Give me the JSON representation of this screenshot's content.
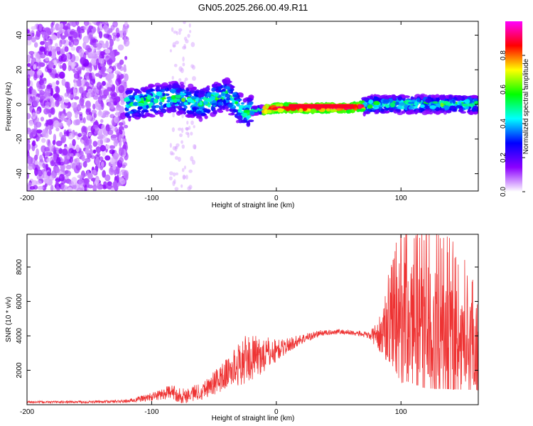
{
  "chart_data": [
    {
      "type": "heatmap",
      "title": "GN05.2025.266.00.49.R11",
      "xlabel": "Height of straight line (km)",
      "ylabel": "Frequency (Hz)",
      "xlim": [
        -200,
        162
      ],
      "ylim": [
        -50,
        48
      ],
      "xticks": [
        -200,
        -100,
        0,
        100
      ],
      "xtick_labels": [
        "-200",
        "-100",
        "0",
        "100"
      ],
      "yticks": [
        -40,
        -20,
        0,
        20,
        40
      ],
      "ytick_labels": [
        "-40",
        "-20",
        "0",
        "20",
        "40"
      ],
      "colorbar": {
        "label": "Normalized spectral amplitude",
        "range": [
          0,
          1
        ],
        "ticks": [
          0,
          0.2,
          0.4,
          0.6,
          0.8
        ],
        "tick_labels": [
          "0.0",
          "0.2",
          "0.4",
          "0.6",
          "0.8"
        ],
        "colors": [
          "#ffffff",
          "#8c00ff",
          "#0000ff",
          "#00ffff",
          "#00ff00",
          "#ffff00",
          "#ff0000",
          "#ff00ff"
        ]
      },
      "description_data": {
        "scatter_region_km": [
          -200,
          -120
        ],
        "band_center_hz": [
          [
            -120,
            0
          ],
          [
            -100,
            2
          ],
          [
            -80,
            4
          ],
          [
            -60,
            0
          ],
          [
            -40,
            6
          ],
          [
            -25,
            -6
          ],
          [
            -20,
            -4
          ],
          [
            0,
            -2
          ],
          [
            40,
            -2
          ],
          [
            60,
            -2
          ],
          [
            80,
            0
          ],
          [
            100,
            0
          ],
          [
            130,
            0
          ],
          [
            160,
            0
          ]
        ],
        "strong_region_km": [
          -10,
          70
        ]
      }
    },
    {
      "type": "line",
      "title": "",
      "xlabel": "Height of straight line (km)",
      "ylabel": "SNR (10 * v/v)",
      "xlim": [
        -200,
        162
      ],
      "ylim": [
        0,
        9900
      ],
      "xticks": [
        -200,
        -100,
        0,
        100
      ],
      "xtick_labels": [
        "-200",
        "-100",
        "0",
        "100"
      ],
      "yticks": [
        2000,
        4000,
        6000,
        8000
      ],
      "ytick_labels": [
        "2000",
        "4000",
        "6000",
        "8000"
      ],
      "color": "#ee3333",
      "envelope": {
        "x": [
          -200,
          -150,
          -120,
          -100,
          -85,
          -75,
          -60,
          -45,
          -35,
          -25,
          -15,
          -5,
          5,
          20,
          35,
          50,
          65,
          75,
          85,
          95,
          105,
          120,
          140,
          162
        ],
        "y": [
          150,
          160,
          200,
          450,
          750,
          500,
          800,
          1500,
          2100,
          2600,
          2800,
          3000,
          3300,
          3800,
          4150,
          4250,
          4150,
          4000,
          4100,
          5000,
          5200,
          4800,
          4200,
          3600
        ]
      },
      "noise_amplitude": {
        "x": [
          -200,
          -150,
          -120,
          -100,
          -80,
          -60,
          -40,
          -25,
          -15,
          -5,
          5,
          20,
          40,
          60,
          75,
          90,
          100,
          120,
          140,
          162
        ],
        "y": [
          60,
          70,
          90,
          250,
          450,
          500,
          900,
          1400,
          1200,
          900,
          500,
          300,
          150,
          150,
          200,
          1800,
          3500,
          3500,
          3000,
          2500
        ]
      }
    }
  ]
}
